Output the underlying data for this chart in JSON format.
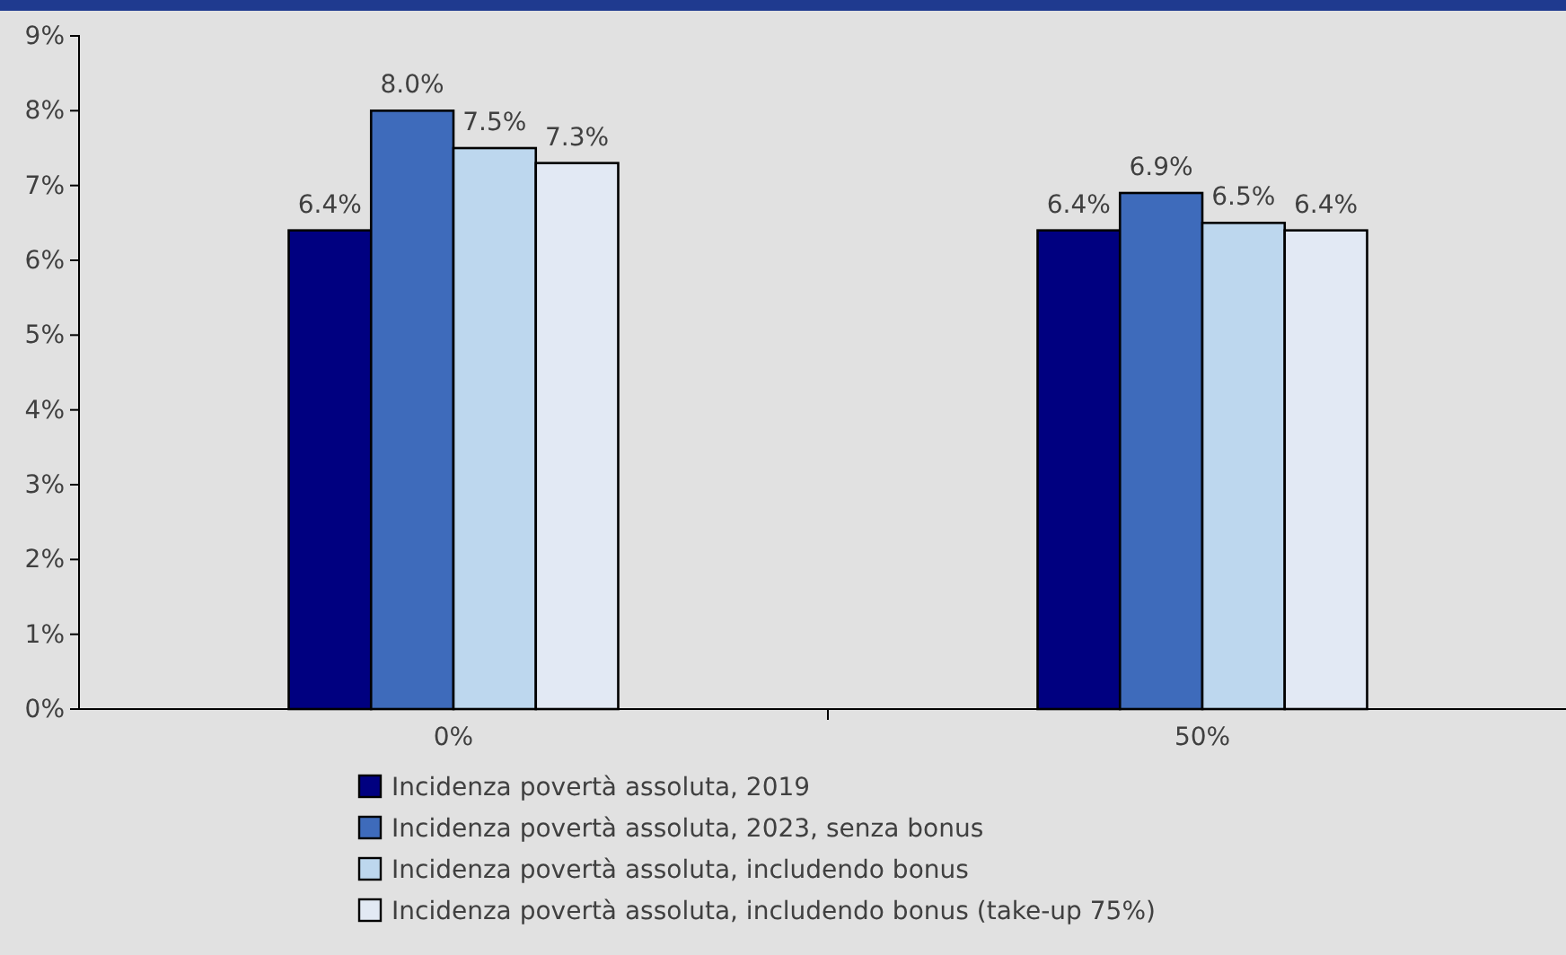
{
  "chart_data": {
    "type": "bar",
    "categories": [
      "0%",
      "50%"
    ],
    "series": [
      {
        "name": "Incidenza povertà assoluta, 2019",
        "color": "#000080",
        "values": [
          6.4,
          6.4
        ],
        "value_labels": [
          "6.4%",
          "6.4%"
        ]
      },
      {
        "name": "Incidenza povertà assoluta, 2023, senza bonus",
        "color": "#3e6bbb",
        "values": [
          8.0,
          6.9
        ],
        "value_labels": [
          "8.0%",
          "6.9%"
        ]
      },
      {
        "name": "Incidenza povertà assoluta, includendo bonus",
        "color": "#bdd7ee",
        "values": [
          7.5,
          6.5
        ],
        "value_labels": [
          "7.5%",
          "6.5%"
        ]
      },
      {
        "name": "Incidenza povertà assoluta, includendo bonus (take-up 75%)",
        "color": "#e2e9f4",
        "values": [
          7.3,
          6.4
        ],
        "value_labels": [
          "7.3%",
          "6.4%"
        ]
      }
    ],
    "ylim": [
      0,
      9
    ],
    "yticks": [
      {
        "value": 0,
        "label": "0%"
      },
      {
        "value": 1,
        "label": "1%"
      },
      {
        "value": 2,
        "label": "2%"
      },
      {
        "value": 3,
        "label": "3%"
      },
      {
        "value": 4,
        "label": "4%"
      },
      {
        "value": 5,
        "label": "5%"
      },
      {
        "value": 6,
        "label": "6%"
      },
      {
        "value": 7,
        "label": "7%"
      },
      {
        "value": 8,
        "label": "8%"
      },
      {
        "value": 9,
        "label": "9%"
      }
    ],
    "grid": false,
    "legend": "bottom"
  }
}
